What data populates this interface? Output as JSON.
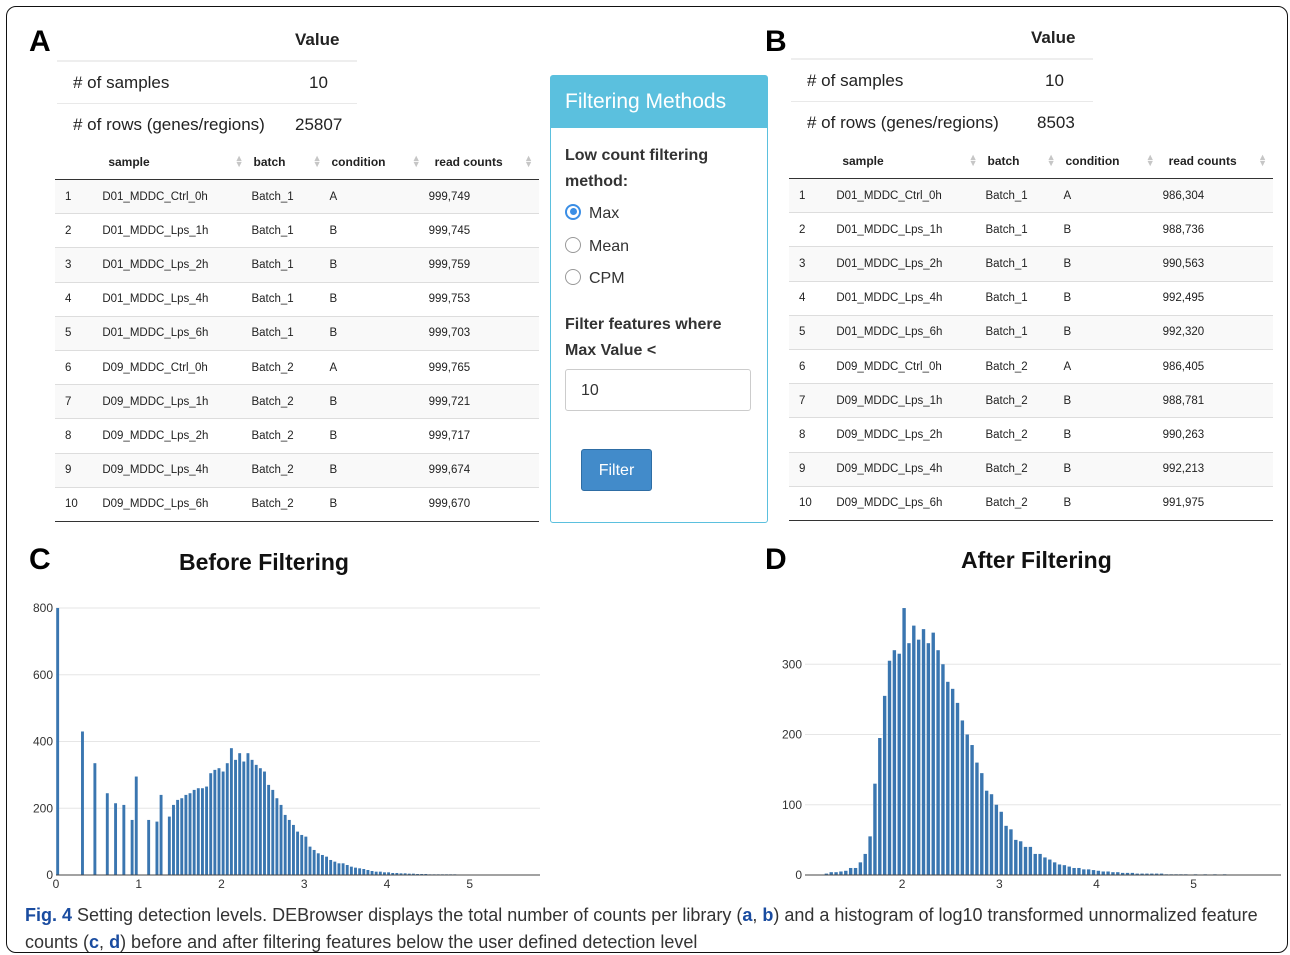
{
  "panels": {
    "a_letter": "A",
    "b_letter": "B",
    "c_letter": "C",
    "d_letter": "D"
  },
  "summary_a": {
    "header_value": "Value",
    "rows": [
      {
        "label": "# of samples",
        "value": "10"
      },
      {
        "label": "# of rows (genes/regions)",
        "value": "25807"
      }
    ]
  },
  "summary_b": {
    "header_value": "Value",
    "rows": [
      {
        "label": "# of samples",
        "value": "10"
      },
      {
        "label": "# of rows (genes/regions)",
        "value": "8503"
      }
    ]
  },
  "table_columns": [
    "sample",
    "batch",
    "condition",
    "read counts"
  ],
  "table_a": [
    [
      "1",
      "D01_MDDC_Ctrl_0h",
      "Batch_1",
      "A",
      "999,749"
    ],
    [
      "2",
      "D01_MDDC_Lps_1h",
      "Batch_1",
      "B",
      "999,745"
    ],
    [
      "3",
      "D01_MDDC_Lps_2h",
      "Batch_1",
      "B",
      "999,759"
    ],
    [
      "4",
      "D01_MDDC_Lps_4h",
      "Batch_1",
      "B",
      "999,753"
    ],
    [
      "5",
      "D01_MDDC_Lps_6h",
      "Batch_1",
      "B",
      "999,703"
    ],
    [
      "6",
      "D09_MDDC_Ctrl_0h",
      "Batch_2",
      "A",
      "999,765"
    ],
    [
      "7",
      "D09_MDDC_Lps_1h",
      "Batch_2",
      "B",
      "999,721"
    ],
    [
      "8",
      "D09_MDDC_Lps_2h",
      "Batch_2",
      "B",
      "999,717"
    ],
    [
      "9",
      "D09_MDDC_Lps_4h",
      "Batch_2",
      "B",
      "999,674"
    ],
    [
      "10",
      "D09_MDDC_Lps_6h",
      "Batch_2",
      "B",
      "999,670"
    ]
  ],
  "table_b": [
    [
      "1",
      "D01_MDDC_Ctrl_0h",
      "Batch_1",
      "A",
      "986,304"
    ],
    [
      "2",
      "D01_MDDC_Lps_1h",
      "Batch_1",
      "B",
      "988,736"
    ],
    [
      "3",
      "D01_MDDC_Lps_2h",
      "Batch_1",
      "B",
      "990,563"
    ],
    [
      "4",
      "D01_MDDC_Lps_4h",
      "Batch_1",
      "B",
      "992,495"
    ],
    [
      "5",
      "D01_MDDC_Lps_6h",
      "Batch_1",
      "B",
      "992,320"
    ],
    [
      "6",
      "D09_MDDC_Ctrl_0h",
      "Batch_2",
      "A",
      "986,405"
    ],
    [
      "7",
      "D09_MDDC_Lps_1h",
      "Batch_2",
      "B",
      "988,781"
    ],
    [
      "8",
      "D09_MDDC_Lps_2h",
      "Batch_2",
      "B",
      "990,263"
    ],
    [
      "9",
      "D09_MDDC_Lps_4h",
      "Batch_2",
      "B",
      "992,213"
    ],
    [
      "10",
      "D09_MDDC_Lps_6h",
      "Batch_2",
      "B",
      "991,975"
    ]
  ],
  "filter": {
    "title": "Filtering Methods",
    "method_label": "Low count filtering method:",
    "options": [
      "Max",
      "Mean",
      "CPM"
    ],
    "selected": "Max",
    "threshold_label": "Filter features where Max Value <",
    "threshold_value": "10",
    "button_label": "Filter"
  },
  "caption": {
    "fig": "Fig. 4",
    "t1": " Setting detection levels. DEBrowser displays the total number of counts per library (",
    "a": "a",
    "t2": ", ",
    "b": "b",
    "t3": ") and a histogram of log10 transformed unnormalized feature counts (",
    "c": "c",
    "t4": ", ",
    "d": "d",
    "t5": ") before and after filtering features below the user defined detection level"
  },
  "colors": {
    "bar": "#3a76b0",
    "accent": "#5bc0de",
    "button": "#428bca",
    "radio": "#3b8ee5"
  },
  "chart_data": [
    {
      "type": "bar",
      "title": "Before Filtering",
      "xlim": [
        0,
        5.85
      ],
      "ylim": [
        0,
        800
      ],
      "x_ticks": [
        0,
        1,
        2,
        3,
        4,
        5
      ],
      "y_ticks": [
        0,
        200,
        400,
        600,
        800
      ],
      "bin_width": 0.05,
      "x": [
        0.02,
        0.32,
        0.47,
        0.62,
        0.72,
        0.82,
        0.92,
        0.97,
        1.12,
        1.22,
        1.27,
        1.37,
        1.42,
        1.47,
        1.52,
        1.57,
        1.62,
        1.67,
        1.72,
        1.77,
        1.82,
        1.87,
        1.92,
        1.97,
        2.02,
        2.07,
        2.12,
        2.17,
        2.22,
        2.27,
        2.32,
        2.37,
        2.42,
        2.47,
        2.52,
        2.57,
        2.62,
        2.67,
        2.72,
        2.77,
        2.82,
        2.87,
        2.92,
        2.97,
        3.02,
        3.07,
        3.12,
        3.17,
        3.22,
        3.27,
        3.32,
        3.37,
        3.42,
        3.47,
        3.52,
        3.57,
        3.62,
        3.67,
        3.72,
        3.77,
        3.82,
        3.87,
        3.92,
        3.97,
        4.02,
        4.07,
        4.12,
        4.17,
        4.22,
        4.27,
        4.32,
        4.37,
        4.42,
        4.47,
        4.52,
        4.57,
        4.62,
        4.67,
        4.72,
        4.77,
        4.82,
        4.87,
        4.92,
        4.97,
        5.07,
        5.22,
        5.42,
        5.62
      ],
      "values": [
        800,
        430,
        335,
        245,
        215,
        210,
        165,
        295,
        165,
        160,
        240,
        175,
        210,
        225,
        230,
        240,
        245,
        255,
        260,
        260,
        265,
        305,
        315,
        320,
        310,
        335,
        380,
        345,
        365,
        340,
        365,
        345,
        330,
        320,
        310,
        270,
        255,
        230,
        210,
        180,
        165,
        150,
        130,
        120,
        115,
        85,
        75,
        65,
        60,
        55,
        45,
        40,
        35,
        35,
        30,
        25,
        22,
        20,
        18,
        15,
        12,
        10,
        10,
        8,
        8,
        6,
        6,
        5,
        5,
        4,
        4,
        3,
        3,
        3,
        2,
        2,
        2,
        2,
        2,
        2,
        2,
        1,
        1,
        1,
        1,
        1,
        1,
        1
      ]
    },
    {
      "type": "bar",
      "title": "After Filtering",
      "xlim": [
        1.0,
        5.9
      ],
      "ylim": [
        0,
        400
      ],
      "x_ticks": [
        2,
        3,
        4,
        5
      ],
      "y_ticks": [
        0,
        100,
        200,
        300
      ],
      "bin_width": 0.05,
      "x": [
        1.22,
        1.27,
        1.32,
        1.37,
        1.42,
        1.47,
        1.52,
        1.57,
        1.62,
        1.67,
        1.72,
        1.77,
        1.82,
        1.87,
        1.92,
        1.97,
        2.02,
        2.07,
        2.12,
        2.17,
        2.22,
        2.27,
        2.32,
        2.37,
        2.42,
        2.47,
        2.52,
        2.57,
        2.62,
        2.67,
        2.72,
        2.77,
        2.82,
        2.87,
        2.92,
        2.97,
        3.02,
        3.07,
        3.12,
        3.17,
        3.22,
        3.27,
        3.32,
        3.37,
        3.42,
        3.47,
        3.52,
        3.57,
        3.62,
        3.67,
        3.72,
        3.77,
        3.82,
        3.87,
        3.92,
        3.97,
        4.02,
        4.07,
        4.12,
        4.17,
        4.22,
        4.27,
        4.32,
        4.37,
        4.42,
        4.47,
        4.52,
        4.57,
        4.62,
        4.67,
        4.72,
        4.77,
        4.82,
        4.87,
        4.92,
        5.02,
        5.12,
        5.22,
        5.32
      ],
      "values": [
        2,
        4,
        4,
        5,
        6,
        10,
        10,
        18,
        30,
        55,
        130,
        195,
        255,
        305,
        320,
        315,
        380,
        330,
        355,
        335,
        350,
        330,
        345,
        320,
        300,
        275,
        265,
        245,
        220,
        200,
        185,
        160,
        145,
        120,
        115,
        100,
        90,
        70,
        65,
        50,
        48,
        40,
        40,
        30,
        30,
        25,
        22,
        18,
        15,
        14,
        12,
        10,
        10,
        8,
        8,
        7,
        6,
        5,
        5,
        4,
        4,
        3,
        3,
        3,
        2,
        2,
        2,
        2,
        2,
        2,
        1,
        1,
        1,
        1,
        1,
        1,
        1,
        1,
        1
      ]
    }
  ]
}
